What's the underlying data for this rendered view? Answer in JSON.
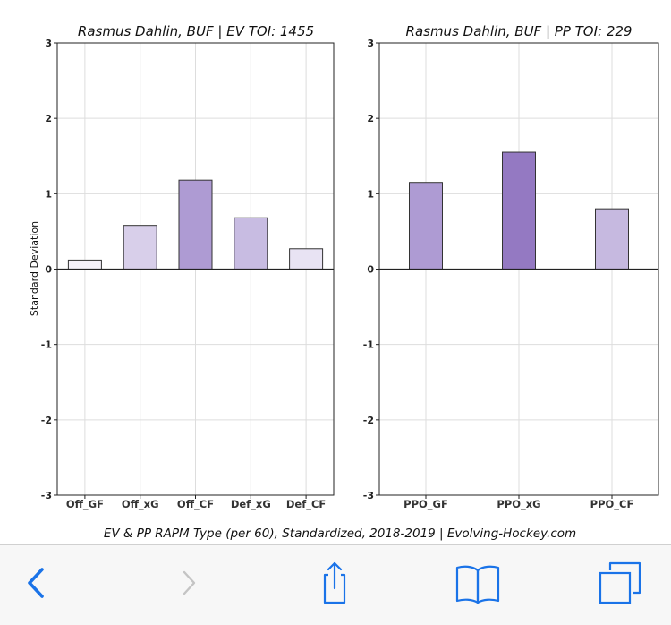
{
  "chart_data": [
    {
      "type": "bar",
      "title": "Rasmus Dahlin, BUF  |  EV TOI: 1455",
      "ylabel": "Standard Deviation",
      "xlabel": "",
      "ylim": [
        -3,
        3
      ],
      "yticks": [
        3,
        2,
        1,
        0,
        -1,
        -2,
        -3
      ],
      "grid": true,
      "categories": [
        "Off_GF",
        "Off_xG",
        "Off_CF",
        "Def_xG",
        "Def_CF"
      ],
      "values": [
        0.12,
        0.58,
        1.18,
        0.68,
        0.27
      ],
      "colors": [
        "#f5f2f9",
        "#d8cfea",
        "#ae9bd3",
        "#c8bce2",
        "#e8e3f3"
      ]
    },
    {
      "type": "bar",
      "title": "Rasmus Dahlin, BUF  |  PP TOI: 229",
      "ylabel": "",
      "xlabel": "",
      "ylim": [
        -3,
        3
      ],
      "yticks": [
        3,
        2,
        1,
        0,
        -1,
        -2,
        -3
      ],
      "grid": true,
      "categories": [
        "PPO_GF",
        "PPO_xG",
        "PPO_CF"
      ],
      "values": [
        1.15,
        1.55,
        0.8
      ],
      "colors": [
        "#ae9bd3",
        "#9479c2",
        "#c6b9e0"
      ]
    }
  ],
  "caption": "EV & PP RAPM Type (per 60), Standardized, 2018-2019    |    Evolving-Hockey.com",
  "toolbar": {
    "icons": [
      "back-chevron-icon",
      "forward-chevron-icon",
      "share-icon",
      "bookmarks-icon",
      "tabs-icon"
    ],
    "accent": "#1a73e8",
    "disabled": "#c4c4c4"
  }
}
